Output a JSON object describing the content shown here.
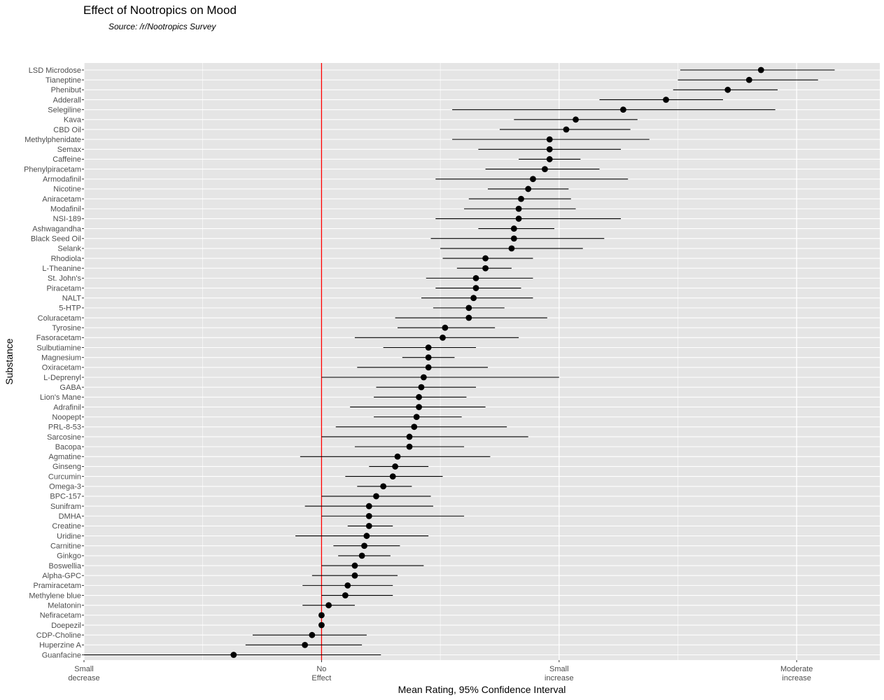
{
  "chart_data": {
    "type": "scatter",
    "title": "Effect of Nootropics on Mood",
    "subtitle": "Source: /r/Nootropics Survey",
    "xlabel": "Mean Rating, 95% Confidence Interval",
    "ylabel": "Substance",
    "xlim": [
      -1.0,
      2.35
    ],
    "x_ticks": [
      {
        "value": -1,
        "label": [
          "Small",
          "decrease"
        ]
      },
      {
        "value": 0,
        "label": [
          "No",
          "Effect"
        ]
      },
      {
        "value": 1,
        "label": [
          "Small",
          "increase"
        ]
      },
      {
        "value": 2,
        "label": [
          "Moderate",
          "increase"
        ]
      }
    ],
    "reference_line": {
      "x": 0,
      "color": "#ff0000"
    },
    "grid": true,
    "colors": {
      "panel": "#e5e5e5",
      "grid": "#ffffff",
      "points": "#000000"
    },
    "points": [
      {
        "name": "LSD Microdose",
        "mean": 1.85,
        "low": 1.51,
        "high": 2.16
      },
      {
        "name": "Tianeptine",
        "mean": 1.8,
        "low": 1.5,
        "high": 2.09
      },
      {
        "name": "Phenibut",
        "mean": 1.71,
        "low": 1.48,
        "high": 1.92
      },
      {
        "name": "Adderall",
        "mean": 1.45,
        "low": 1.17,
        "high": 1.69
      },
      {
        "name": "Selegiline",
        "mean": 1.27,
        "low": 0.55,
        "high": 1.91
      },
      {
        "name": "Kava",
        "mean": 1.07,
        "low": 0.81,
        "high": 1.33
      },
      {
        "name": "CBD Oil",
        "mean": 1.03,
        "low": 0.75,
        "high": 1.3
      },
      {
        "name": "Methylphenidate",
        "mean": 0.96,
        "low": 0.55,
        "high": 1.38
      },
      {
        "name": "Semax",
        "mean": 0.96,
        "low": 0.66,
        "high": 1.26
      },
      {
        "name": "Caffeine",
        "mean": 0.96,
        "low": 0.83,
        "high": 1.09
      },
      {
        "name": "Phenylpiracetam",
        "mean": 0.94,
        "low": 0.69,
        "high": 1.17
      },
      {
        "name": "Armodafinil",
        "mean": 0.89,
        "low": 0.48,
        "high": 1.29
      },
      {
        "name": "Nicotine",
        "mean": 0.87,
        "low": 0.7,
        "high": 1.04
      },
      {
        "name": "Aniracetam",
        "mean": 0.84,
        "low": 0.62,
        "high": 1.05
      },
      {
        "name": "Modafinil",
        "mean": 0.83,
        "low": 0.6,
        "high": 1.07
      },
      {
        "name": "NSI-189",
        "mean": 0.83,
        "low": 0.48,
        "high": 1.26
      },
      {
        "name": "Ashwagandha",
        "mean": 0.81,
        "low": 0.66,
        "high": 0.98
      },
      {
        "name": "Black Seed Oil",
        "mean": 0.81,
        "low": 0.46,
        "high": 1.19
      },
      {
        "name": "Selank",
        "mean": 0.8,
        "low": 0.5,
        "high": 1.1
      },
      {
        "name": "Rhodiola",
        "mean": 0.69,
        "low": 0.51,
        "high": 0.89
      },
      {
        "name": "L-Theanine",
        "mean": 0.69,
        "low": 0.57,
        "high": 0.8
      },
      {
        "name": "St. John's",
        "mean": 0.65,
        "low": 0.44,
        "high": 0.89
      },
      {
        "name": "Piracetam",
        "mean": 0.65,
        "low": 0.48,
        "high": 0.84
      },
      {
        "name": "NALT",
        "mean": 0.64,
        "low": 0.42,
        "high": 0.89
      },
      {
        "name": "5-HTP",
        "mean": 0.62,
        "low": 0.47,
        "high": 0.77
      },
      {
        "name": "Coluracetam",
        "mean": 0.62,
        "low": 0.31,
        "high": 0.95
      },
      {
        "name": "Tyrosine",
        "mean": 0.52,
        "low": 0.32,
        "high": 0.73
      },
      {
        "name": "Fasoracetam",
        "mean": 0.51,
        "low": 0.14,
        "high": 0.83
      },
      {
        "name": "Sulbutiamine",
        "mean": 0.45,
        "low": 0.26,
        "high": 0.65
      },
      {
        "name": "Magnesium",
        "mean": 0.45,
        "low": 0.34,
        "high": 0.56
      },
      {
        "name": "Oxiracetam",
        "mean": 0.45,
        "low": 0.15,
        "high": 0.7
      },
      {
        "name": "L-Deprenyl",
        "mean": 0.43,
        "low": 0.0,
        "high": 1.0
      },
      {
        "name": "GABA",
        "mean": 0.42,
        "low": 0.23,
        "high": 0.65
      },
      {
        "name": "Lion's Mane",
        "mean": 0.41,
        "low": 0.22,
        "high": 0.61
      },
      {
        "name": "Adrafinil",
        "mean": 0.41,
        "low": 0.12,
        "high": 0.69
      },
      {
        "name": "Noopept",
        "mean": 0.4,
        "low": 0.22,
        "high": 0.59
      },
      {
        "name": "PRL-8-53",
        "mean": 0.39,
        "low": 0.06,
        "high": 0.78
      },
      {
        "name": "Sarcosine",
        "mean": 0.37,
        "low": 0.0,
        "high": 0.87
      },
      {
        "name": "Bacopa",
        "mean": 0.37,
        "low": 0.14,
        "high": 0.6
      },
      {
        "name": "Agmatine",
        "mean": 0.32,
        "low": -0.09,
        "high": 0.71
      },
      {
        "name": "Ginseng",
        "mean": 0.31,
        "low": 0.2,
        "high": 0.45
      },
      {
        "name": "Curcumin",
        "mean": 0.3,
        "low": 0.1,
        "high": 0.51
      },
      {
        "name": "Omega-3",
        "mean": 0.26,
        "low": 0.15,
        "high": 0.38
      },
      {
        "name": "BPC-157",
        "mean": 0.23,
        "low": 0.0,
        "high": 0.46
      },
      {
        "name": "Sunifram",
        "mean": 0.2,
        "low": -0.07,
        "high": 0.47
      },
      {
        "name": "DMHA",
        "mean": 0.2,
        "low": 0.0,
        "high": 0.6
      },
      {
        "name": "Creatine",
        "mean": 0.2,
        "low": 0.11,
        "high": 0.3
      },
      {
        "name": "Uridine",
        "mean": 0.19,
        "low": -0.11,
        "high": 0.45
      },
      {
        "name": "Carnitine",
        "mean": 0.18,
        "low": 0.05,
        "high": 0.33
      },
      {
        "name": "Ginkgo",
        "mean": 0.17,
        "low": 0.07,
        "high": 0.29
      },
      {
        "name": "Boswellia",
        "mean": 0.14,
        "low": 0.0,
        "high": 0.43
      },
      {
        "name": "Alpha-GPC",
        "mean": 0.14,
        "low": -0.04,
        "high": 0.32
      },
      {
        "name": "Pramiracetam",
        "mean": 0.11,
        "low": -0.08,
        "high": 0.3
      },
      {
        "name": "Methylene blue",
        "mean": 0.1,
        "low": 0.0,
        "high": 0.3
      },
      {
        "name": "Melatonin",
        "mean": 0.03,
        "low": -0.08,
        "high": 0.14
      },
      {
        "name": "Nefiracetam",
        "mean": 0.0,
        "low": 0.0,
        "high": 0.0
      },
      {
        "name": "Doepezil",
        "mean": 0.0,
        "low": 0.0,
        "high": 0.0
      },
      {
        "name": "CDP-Choline",
        "mean": -0.04,
        "low": -0.29,
        "high": 0.19
      },
      {
        "name": "Huperzine A",
        "mean": -0.07,
        "low": -0.32,
        "high": 0.17
      },
      {
        "name": "Guanfacine",
        "mean": -0.37,
        "low": -1.0,
        "high": 0.25
      }
    ]
  }
}
